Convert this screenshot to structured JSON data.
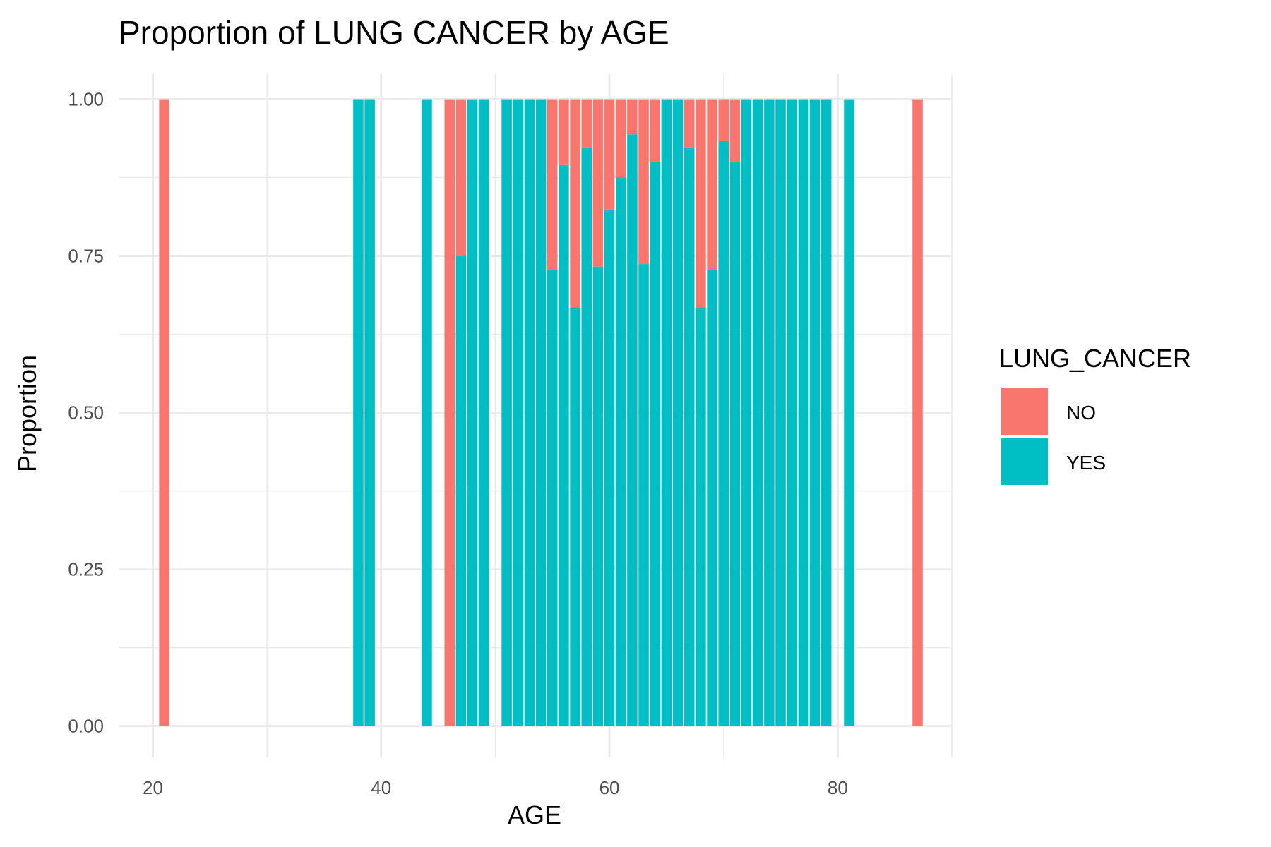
{
  "chart_data": {
    "type": "bar",
    "stacked": true,
    "title": "Proportion of LUNG CANCER by AGE",
    "xlabel": "AGE",
    "ylabel": "Proportion",
    "xlim": [
      17,
      90
    ],
    "ylim": [
      -0.05,
      1.04
    ],
    "x_ticks": [
      20,
      40,
      60,
      80
    ],
    "y_ticks": [
      0,
      0.25,
      0.5,
      0.75,
      1
    ],
    "y_tick_labels": [
      "0.00",
      "0.25",
      "0.50",
      "0.75",
      "1.00"
    ],
    "grid": true,
    "legend": {
      "title": "LUNG_CANCER",
      "position": "right"
    },
    "series": [
      {
        "name": "NO",
        "color": "#F8766D"
      },
      {
        "name": "YES",
        "color": "#00BFC4"
      }
    ],
    "x": [
      21,
      38,
      39,
      44,
      46,
      47,
      48,
      49,
      51,
      52,
      53,
      54,
      55,
      56,
      57,
      58,
      59,
      60,
      61,
      62,
      63,
      64,
      65,
      66,
      67,
      68,
      69,
      70,
      71,
      72,
      73,
      74,
      75,
      76,
      77,
      78,
      79,
      81,
      87
    ],
    "yes_proportion": [
      0,
      1,
      1,
      1,
      0,
      0.75,
      1,
      1,
      1,
      1,
      1,
      1,
      0.727,
      0.895,
      0.667,
      0.923,
      0.733,
      0.824,
      0.875,
      0.944,
      0.737,
      0.9,
      1,
      1,
      0.923,
      0.667,
      0.727,
      0.933,
      0.9,
      1,
      1,
      1,
      1,
      1,
      1,
      1,
      1,
      1,
      0
    ]
  }
}
